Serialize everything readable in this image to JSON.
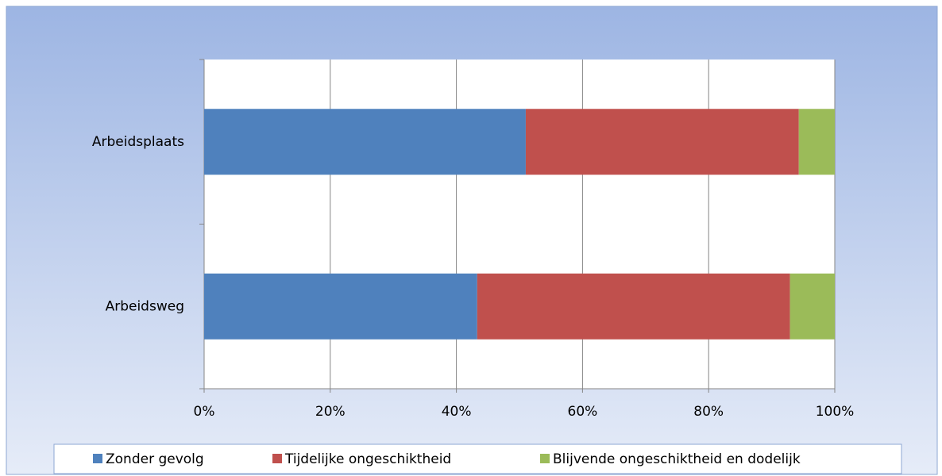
{
  "chart_data": {
    "type": "stacked_barh",
    "categories": [
      "Arbeidsplaats",
      "Arbeidsweg"
    ],
    "series": [
      {
        "name": "Zonder gevolg",
        "color": "#4f81bd",
        "values": [
          51.0,
          43.3
        ]
      },
      {
        "name": "Tijdelijke ongeschiktheid",
        "color": "#c0504d",
        "values": [
          43.3,
          49.6
        ]
      },
      {
        "name": "Blijvende ongeschiktheid en dodelijk",
        "color": "#9bbb59",
        "values": [
          5.7,
          7.1
        ]
      }
    ],
    "xlim": [
      0,
      100
    ],
    "xticks": [
      {
        "value": 0,
        "label": "0%"
      },
      {
        "value": 20,
        "label": "20%"
      },
      {
        "value": 40,
        "label": "40%"
      },
      {
        "value": 60,
        "label": "60%"
      },
      {
        "value": 80,
        "label": "80%"
      },
      {
        "value": 100,
        "label": "100%"
      }
    ],
    "grid": true,
    "legend": "bottom"
  }
}
